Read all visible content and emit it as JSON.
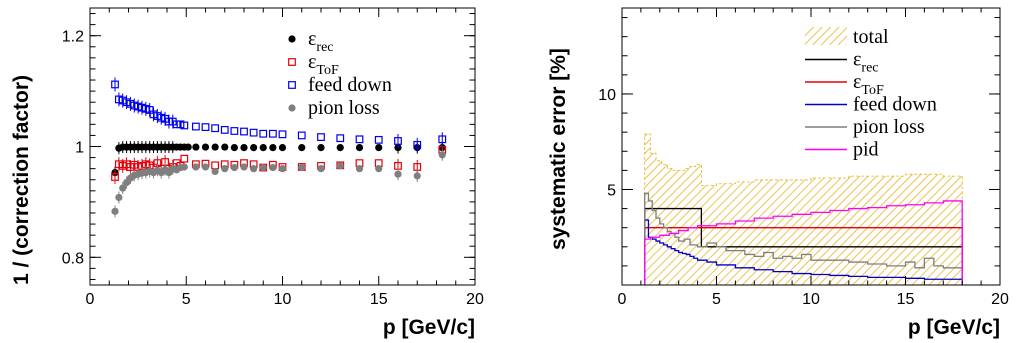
{
  "chart_data": [
    {
      "type": "scatter",
      "xlabel": "p [GeV/c]",
      "ylabel": "1 / (correction factor)",
      "xlim": [
        0,
        20
      ],
      "ylim": [
        0.75,
        1.25
      ],
      "xticks": [
        0,
        5,
        10,
        15,
        20
      ],
      "yticks": [
        0.8,
        1,
        1.2
      ],
      "ytick_labels": [
        "0.8",
        "1",
        "1.2"
      ],
      "grid": false,
      "legend_position": "top-right",
      "series": [
        {
          "name": "ε_rec",
          "name_main": "ε",
          "name_sub": "rec",
          "marker": "filled-circle",
          "color": "#000000",
          "x": [
            1.3,
            1.5,
            1.7,
            1.9,
            2.1,
            2.3,
            2.5,
            2.7,
            2.9,
            3.1,
            3.3,
            3.5,
            3.7,
            3.9,
            4.1,
            4.3,
            4.5,
            4.7,
            4.9,
            5.1,
            5.5,
            6.0,
            6.5,
            7.0,
            7.5,
            8.0,
            8.5,
            9.0,
            9.5,
            10.0,
            11.0,
            12.0,
            13.0,
            14.0,
            15.0,
            16.0,
            17.0,
            18.3
          ],
          "y": [
            0.953,
            0.997,
            0.999,
            0.999,
            0.999,
            0.999,
            0.999,
            0.999,
            0.999,
            0.999,
            0.999,
            0.999,
            0.999,
            0.999,
            0.999,
            0.999,
            0.999,
            0.999,
            0.999,
            0.999,
            0.999,
            0.999,
            0.999,
            0.999,
            0.998,
            0.998,
            0.998,
            0.998,
            0.998,
            0.998,
            0.998,
            0.998,
            0.998,
            0.998,
            0.998,
            0.998,
            0.998,
            0.998
          ]
        },
        {
          "name": "ε_ToF",
          "name_main": "ε",
          "name_sub": "ToF",
          "marker": "open-square",
          "color": "#e8000b",
          "x": [
            1.3,
            1.5,
            1.7,
            1.9,
            2.1,
            2.3,
            2.5,
            2.7,
            2.9,
            3.1,
            3.3,
            3.5,
            3.7,
            3.9,
            4.1,
            4.3,
            4.5,
            4.7,
            4.9,
            5.5,
            6.0,
            6.5,
            7.0,
            7.5,
            8.0,
            8.5,
            9.0,
            9.5,
            10.0,
            11.0,
            12.0,
            13.0,
            14.0,
            15.0,
            16.0,
            17.0,
            18.3
          ],
          "y": [
            0.945,
            0.968,
            0.965,
            0.968,
            0.963,
            0.967,
            0.963,
            0.965,
            0.968,
            0.966,
            0.962,
            0.97,
            0.96,
            0.972,
            0.96,
            0.963,
            0.97,
            0.965,
            0.978,
            0.968,
            0.969,
            0.966,
            0.968,
            0.967,
            0.97,
            0.968,
            0.962,
            0.967,
            0.963,
            0.963,
            0.965,
            0.966,
            0.97,
            0.97,
            0.965,
            0.963,
            0.994
          ]
        },
        {
          "name": "feed down",
          "name_main": "feed down",
          "name_sub": "",
          "marker": "open-square",
          "color": "#0000ee",
          "x": [
            1.3,
            1.5,
            1.7,
            1.9,
            2.1,
            2.3,
            2.5,
            2.7,
            2.9,
            3.1,
            3.3,
            3.5,
            3.7,
            3.9,
            4.1,
            4.3,
            4.5,
            4.7,
            4.9,
            5.5,
            6.0,
            6.5,
            7.0,
            7.5,
            8.0,
            8.5,
            9.0,
            9.5,
            10.0,
            11.0,
            12.0,
            13.0,
            14.0,
            15.0,
            16.0,
            17.0,
            18.3
          ],
          "y": [
            1.112,
            1.085,
            1.083,
            1.08,
            1.077,
            1.074,
            1.072,
            1.07,
            1.068,
            1.066,
            1.058,
            1.055,
            1.052,
            1.05,
            1.045,
            1.045,
            1.04,
            1.04,
            1.038,
            1.036,
            1.035,
            1.033,
            1.03,
            1.028,
            1.027,
            1.025,
            1.023,
            1.023,
            1.022,
            1.02,
            1.017,
            1.015,
            1.013,
            1.012,
            1.01,
            1.003,
            1.013
          ]
        },
        {
          "name": "pion loss",
          "name_main": "pion loss",
          "name_sub": "",
          "marker": "filled-circle",
          "color": "#7f7f7f",
          "x": [
            1.3,
            1.5,
            1.7,
            1.9,
            2.1,
            2.3,
            2.5,
            2.7,
            2.9,
            3.1,
            3.3,
            3.5,
            3.7,
            3.9,
            4.1,
            4.3,
            4.5,
            4.7,
            4.9,
            5.5,
            6.0,
            6.5,
            7.0,
            7.5,
            8.0,
            8.5,
            9.0,
            9.5,
            10.0,
            11.0,
            12.0,
            13.0,
            14.0,
            15.0,
            16.0,
            17.0,
            18.3
          ],
          "y": [
            0.883,
            0.908,
            0.925,
            0.935,
            0.943,
            0.948,
            0.95,
            0.952,
            0.953,
            0.955,
            0.953,
            0.957,
            0.953,
            0.958,
            0.953,
            0.96,
            0.958,
            0.962,
            0.963,
            0.963,
            0.963,
            0.955,
            0.96,
            0.962,
            0.963,
            0.96,
            0.962,
            0.962,
            0.96,
            0.962,
            0.96,
            0.965,
            0.96,
            0.96,
            0.95,
            0.947,
            0.985
          ]
        }
      ]
    },
    {
      "type": "histogram",
      "xlabel": "p [GeV/c]",
      "ylabel": "systematic error [%]",
      "xlim": [
        0,
        20
      ],
      "ylim": [
        0,
        14.5
      ],
      "xticks": [
        0,
        5,
        10,
        15,
        20
      ],
      "yticks": [
        5,
        10
      ],
      "ytick_labels": [
        "5",
        "10"
      ],
      "grid": false,
      "legend_position": "top-right",
      "series": [
        {
          "name": "total",
          "name_main": "total",
          "name_sub": "",
          "style": "hatched-band",
          "color": "#e6b422",
          "edges": [
            1.2,
            1.5,
            1.8,
            2.1,
            2.4,
            2.7,
            3.0,
            3.3,
            3.6,
            3.9,
            4.2,
            5,
            6,
            7,
            8,
            9,
            10,
            11,
            12,
            13,
            14,
            15,
            16,
            17,
            18
          ],
          "values": [
            7.9,
            6.9,
            6.5,
            6.3,
            6.1,
            6.0,
            6.0,
            6.1,
            6.2,
            6.3,
            5.2,
            5.3,
            5.4,
            5.5,
            5.5,
            5.5,
            5.6,
            5.6,
            5.7,
            5.7,
            5.7,
            5.8,
            5.8,
            5.7
          ]
        },
        {
          "name": "ε_rec",
          "name_main": "ε",
          "name_sub": "rec",
          "style": "step",
          "color": "#000000",
          "edges": [
            1.2,
            4.2,
            18
          ],
          "values": [
            4.0,
            2.0
          ]
        },
        {
          "name": "ε_ToF",
          "name_main": "ε",
          "name_sub": "ToF",
          "style": "step",
          "color": "#e8000b",
          "edges": [
            1.2,
            18
          ],
          "values": [
            3.0
          ]
        },
        {
          "name": "feed down",
          "name_main": "feed down",
          "name_sub": "",
          "style": "step",
          "color": "#0000cc",
          "edges": [
            1.2,
            1.4,
            1.6,
            1.8,
            2.0,
            2.2,
            2.4,
            2.6,
            2.8,
            3.0,
            3.2,
            3.4,
            3.6,
            3.8,
            4.0,
            4.5,
            5,
            6,
            7,
            8,
            9,
            10,
            11,
            12,
            13,
            14,
            15,
            16,
            17,
            18
          ],
          "values": [
            3.4,
            2.5,
            2.4,
            2.3,
            2.2,
            2.1,
            2.0,
            1.9,
            1.8,
            1.7,
            1.65,
            1.6,
            1.5,
            1.4,
            1.3,
            1.2,
            1.05,
            0.9,
            0.8,
            0.7,
            0.6,
            0.55,
            0.5,
            0.45,
            0.4,
            0.4,
            0.35,
            0.3,
            0.3
          ]
        },
        {
          "name": "pion loss",
          "name_main": "pion loss",
          "name_sub": "",
          "style": "step",
          "color": "#7f7f7f",
          "edges": [
            1.2,
            1.4,
            1.6,
            1.8,
            2.0,
            2.2,
            2.4,
            2.6,
            2.8,
            3.0,
            3.3,
            3.6,
            4.0,
            4.5,
            5,
            5.5,
            6,
            6.5,
            7,
            7.5,
            8,
            8.5,
            9,
            9.5,
            10,
            11,
            12,
            13,
            14,
            15,
            15.5,
            16,
            16.5,
            17,
            18
          ],
          "values": [
            4.8,
            4.4,
            3.9,
            3.5,
            3.2,
            3.0,
            2.8,
            2.7,
            2.5,
            2.3,
            2.4,
            2.1,
            2.0,
            2.2,
            2.0,
            1.8,
            1.8,
            1.6,
            1.5,
            1.7,
            1.4,
            1.5,
            1.4,
            1.6,
            1.3,
            1.3,
            1.2,
            1.1,
            1.0,
            1.2,
            0.9,
            1.4,
            1.0,
            0.9
          ]
        },
        {
          "name": "pid",
          "name_main": "pid",
          "name_sub": "",
          "style": "step",
          "color": "#ff00ff",
          "edges": [
            1.2,
            1.5,
            2.0,
            2.5,
            3.0,
            3.5,
            4.0,
            5,
            6,
            7,
            8,
            9,
            10,
            11,
            12,
            13,
            14,
            15,
            16,
            17,
            18
          ],
          "values": [
            2.4,
            2.5,
            2.6,
            2.7,
            2.85,
            3.0,
            3.1,
            3.2,
            3.35,
            3.5,
            3.6,
            3.7,
            3.8,
            3.9,
            4.0,
            4.05,
            4.15,
            4.2,
            4.3,
            4.4
          ]
        }
      ]
    }
  ]
}
